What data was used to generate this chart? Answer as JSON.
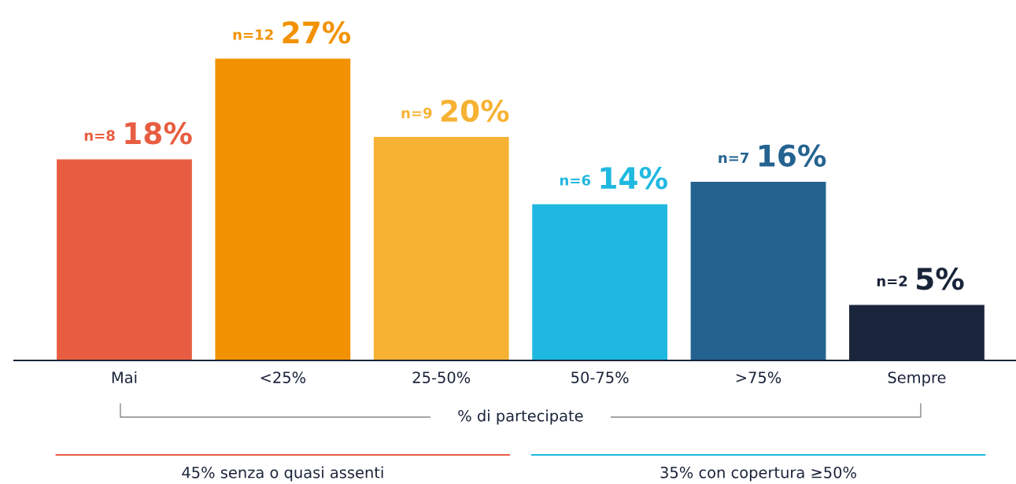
{
  "chart_data": {
    "type": "bar",
    "categories": [
      "Mai",
      "<25%",
      "25-50%",
      "50-75%",
      ">75%",
      "Sempre"
    ],
    "values": [
      18,
      27,
      20,
      14,
      16,
      5
    ],
    "colors": [
      "#e85d41",
      "#f29200",
      "#f7b234",
      "#1fb8e0",
      "#246390",
      "#1a243a"
    ],
    "value_labels": [
      "n=8 18%",
      "n=12 27%",
      "n=9 20%",
      "n=6 14%",
      "n=7 16%",
      "n=2 5%"
    ],
    "xlabel": "% di partecipate",
    "annotations": [
      "45% senza o quasi assenti",
      "35% con copertura ≥50%"
    ],
    "grid": false,
    "legend": false
  }
}
